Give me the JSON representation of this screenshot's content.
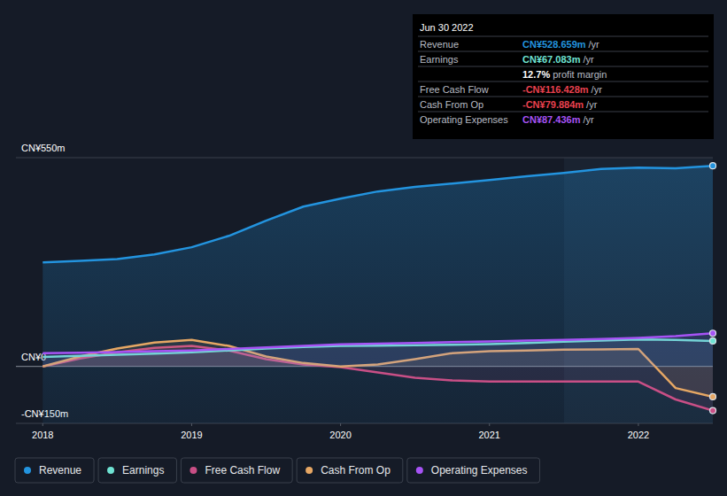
{
  "chart_data": {
    "type": "line",
    "x": [
      2018.0,
      2018.25,
      2018.5,
      2018.75,
      2019.0,
      2019.25,
      2019.5,
      2019.75,
      2020.0,
      2020.25,
      2020.5,
      2020.75,
      2021.0,
      2021.25,
      2021.5,
      2021.75,
      2022.0,
      2022.25,
      2022.5
    ],
    "xlim": [
      2017.82,
      2022.5
    ],
    "xticks": [
      2018,
      2019,
      2020,
      2021,
      2022
    ],
    "ylim": [
      -150,
      550
    ],
    "yticks": [
      {
        "value": 550,
        "label": "CN¥550m"
      },
      {
        "value": 0,
        "label": "CN¥0"
      },
      {
        "value": -150,
        "label": "-CN¥150m"
      }
    ],
    "grid": true,
    "legend": "bottom",
    "series": [
      {
        "name": "Revenue",
        "color": "#2394df",
        "values": [
          274,
          278,
          283,
          295,
          314,
          344,
          384,
          421,
          442,
          461,
          473,
          482,
          491,
          501,
          510,
          520,
          524,
          522,
          528.659
        ]
      },
      {
        "name": "Earnings",
        "color": "#6fe3d3",
        "values": [
          25,
          28,
          31,
          34,
          37,
          42,
          47,
          51,
          54,
          55,
          56,
          57,
          59,
          62,
          65,
          68,
          71,
          70,
          67.083
        ]
      },
      {
        "name": "Free Cash Flow",
        "color": "#c94f86",
        "values": [
          0,
          21,
          37,
          49,
          54,
          42,
          19,
          5,
          -2,
          -16,
          -30,
          -37,
          -40,
          -40,
          -40,
          -40,
          -40,
          -87,
          -116.428
        ]
      },
      {
        "name": "Cash From Op",
        "color": "#e6a764",
        "values": [
          0,
          26,
          47,
          63,
          70,
          54,
          26,
          9,
          0,
          5,
          19,
          35,
          40,
          42,
          44,
          45,
          46,
          -57,
          -79.884
        ]
      },
      {
        "name": "Operating Expenses",
        "color": "#a653f5",
        "values": [
          35,
          36,
          38,
          40,
          42,
          46,
          50,
          54,
          58,
          60,
          62,
          64,
          66,
          68,
          70,
          72,
          75,
          80,
          87.436
        ]
      }
    ],
    "tooltip": {
      "title": "Jun 30 2022",
      "rows": [
        {
          "label": "Revenue",
          "value": "CN¥528.659m",
          "unit": "/yr",
          "color": "#2394df"
        },
        {
          "label": "Earnings",
          "value": "CN¥67.083m",
          "unit": "/yr",
          "color": "#6fe3d3"
        },
        {
          "value": "12.7%",
          "note": "profit margin",
          "color": "#ffffff"
        },
        {
          "label": "Free Cash Flow",
          "value": "-CN¥116.428m",
          "unit": "/yr",
          "color": "#e8414f"
        },
        {
          "label": "Cash From Op",
          "value": "-CN¥79.884m",
          "unit": "/yr",
          "color": "#e8414f"
        },
        {
          "label": "Operating Expenses",
          "value": "CN¥87.436m",
          "unit": "/yr",
          "color": "#a653f5"
        }
      ]
    }
  }
}
